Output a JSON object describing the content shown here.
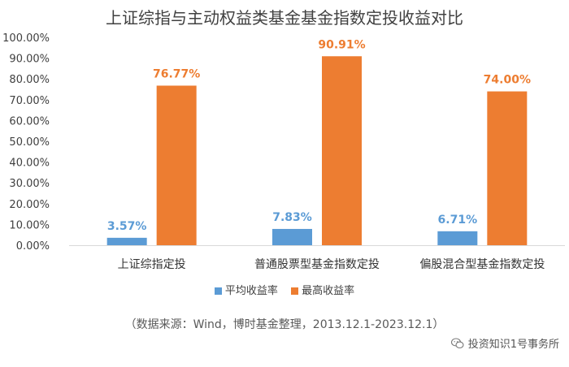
{
  "chart_data": {
    "type": "bar",
    "title": "上证综指与主动权益类基金基金指数定投收益对比",
    "categories": [
      "上证综指定投",
      "普通股票型基金指数定投",
      "偏股混合型基金指数定投"
    ],
    "series": [
      {
        "name": "平均收益率",
        "values": [
          3.57,
          7.83,
          6.71
        ],
        "labels": [
          "3.57%",
          "7.83%",
          "6.71%"
        ],
        "color": "#5B9BD5",
        "label_color": "#5B9BD5"
      },
      {
        "name": "最高收益率",
        "values": [
          76.77,
          90.91,
          74.0
        ],
        "labels": [
          "76.77%",
          "90.91%",
          "74.00%"
        ],
        "color": "#ED7D31",
        "label_color": "#ED7D31"
      }
    ],
    "y_ticks": [
      "0.00%",
      "10.00%",
      "20.00%",
      "30.00%",
      "40.00%",
      "50.00%",
      "60.00%",
      "70.00%",
      "80.00%",
      "90.00%",
      "100.00%"
    ],
    "ylim": [
      0,
      100
    ],
    "grid": false,
    "legend_position": "bottom"
  },
  "source_note": "（数据来源：Wind，博时基金整理，2013.12.1-2023.12.1）",
  "watermark": "投资知识1号事务所",
  "watermark_icon": "wechat-icon"
}
